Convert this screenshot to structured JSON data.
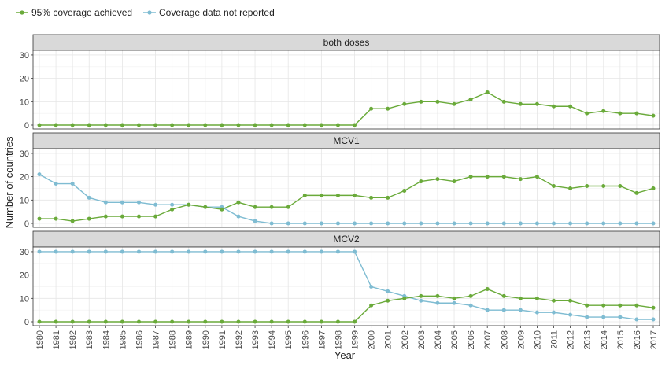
{
  "chart_data": {
    "type": "line",
    "xlabel": "Year",
    "ylabel": "Number of countries",
    "ylim": [
      0,
      32
    ],
    "yticks": [
      0,
      10,
      20,
      30
    ],
    "grid": true,
    "legend_position": "top-left",
    "x": [
      1980,
      1981,
      1982,
      1983,
      1984,
      1985,
      1986,
      1987,
      1988,
      1989,
      1990,
      1991,
      1992,
      1993,
      1994,
      1995,
      1996,
      1997,
      1998,
      1999,
      2000,
      2001,
      2002,
      2003,
      2004,
      2005,
      2006,
      2007,
      2008,
      2009,
      2010,
      2011,
      2012,
      2013,
      2014,
      2015,
      2016,
      2017
    ],
    "x_tick_labels": [
      "1980",
      "1981",
      "1982",
      "1983",
      "1984",
      "1985",
      "1986",
      "1987",
      "1988",
      "1989",
      "1990",
      "1991",
      "1992",
      "1993",
      "1994",
      "1995",
      "1996",
      "1997",
      "1998",
      "1999",
      "2000",
      "2001",
      "2002",
      "2003",
      "2004",
      "2005",
      "2006",
      "2007",
      "2008",
      "2009",
      "2010",
      "2011",
      "2012",
      "2013",
      "2014",
      "2015",
      "2016",
      "2017"
    ],
    "legend": [
      {
        "name": "95% coverage achieved",
        "color": "#6aaa3a"
      },
      {
        "name": "Coverage data not reported",
        "color": "#7fbcd2"
      }
    ],
    "panels": [
      {
        "label": "both doses",
        "series": [
          {
            "name": "95% coverage achieved",
            "color": "#6aaa3a",
            "values": [
              0,
              0,
              0,
              0,
              0,
              0,
              0,
              0,
              0,
              0,
              0,
              0,
              0,
              0,
              0,
              0,
              0,
              0,
              0,
              0,
              7,
              7,
              9,
              10,
              10,
              9,
              11,
              14,
              10,
              9,
              9,
              8,
              8,
              5,
              6,
              5,
              5,
              4
            ]
          }
        ]
      },
      {
        "label": "MCV1",
        "series": [
          {
            "name": "Coverage data not reported",
            "color": "#7fbcd2",
            "values": [
              21,
              17,
              17,
              11,
              9,
              9,
              9,
              8,
              8,
              8,
              7,
              7,
              3,
              1,
              0,
              0,
              0,
              0,
              0,
              0,
              0,
              0,
              0,
              0,
              0,
              0,
              0,
              0,
              0,
              0,
              0,
              0,
              0,
              0,
              0,
              0,
              0,
              0
            ]
          },
          {
            "name": "95% coverage achieved",
            "color": "#6aaa3a",
            "values": [
              2,
              2,
              1,
              2,
              3,
              3,
              3,
              3,
              6,
              8,
              7,
              6,
              9,
              7,
              7,
              7,
              12,
              12,
              12,
              12,
              11,
              11,
              14,
              18,
              19,
              18,
              20,
              20,
              20,
              19,
              20,
              16,
              15,
              16,
              16,
              16,
              13,
              15
            ]
          }
        ]
      },
      {
        "label": "MCV2",
        "series": [
          {
            "name": "Coverage data not reported",
            "color": "#7fbcd2",
            "values": [
              30,
              30,
              30,
              30,
              30,
              30,
              30,
              30,
              30,
              30,
              30,
              30,
              30,
              30,
              30,
              30,
              30,
              30,
              30,
              30,
              15,
              13,
              11,
              9,
              8,
              8,
              7,
              5,
              5,
              5,
              4,
              4,
              3,
              2,
              2,
              2,
              1,
              1
            ]
          },
          {
            "name": "95% coverage achieved",
            "color": "#6aaa3a",
            "values": [
              0,
              0,
              0,
              0,
              0,
              0,
              0,
              0,
              0,
              0,
              0,
              0,
              0,
              0,
              0,
              0,
              0,
              0,
              0,
              0,
              7,
              9,
              10,
              11,
              11,
              10,
              11,
              14,
              11,
              10,
              10,
              9,
              9,
              7,
              7,
              7,
              7,
              6
            ]
          }
        ]
      }
    ]
  }
}
